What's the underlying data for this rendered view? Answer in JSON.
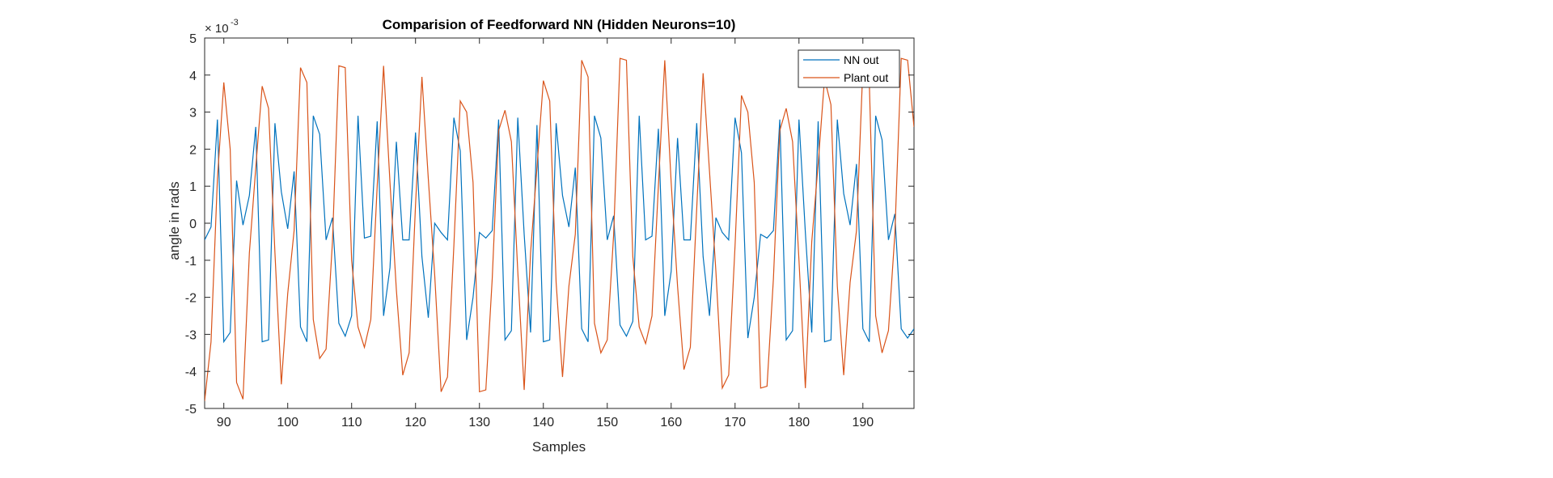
{
  "chart_data": {
    "type": "line",
    "title": "Comparision of Feedforward NN (Hidden Neurons=10)",
    "xlabel": "Samples",
    "ylabel": "angle in rads",
    "y_exponent_label": "× 10",
    "y_exponent_power": "-3",
    "xlim": [
      87,
      198
    ],
    "ylim": [
      -5,
      5
    ],
    "xticks": [
      90,
      100,
      110,
      120,
      130,
      140,
      150,
      160,
      170,
      180,
      190
    ],
    "yticks": [
      -5,
      -4,
      -3,
      -2,
      -1,
      0,
      1,
      2,
      3,
      4,
      5
    ],
    "grid": false,
    "legend_position": "top-right",
    "x": [
      87,
      88,
      89,
      90,
      91,
      92,
      93,
      94,
      95,
      96,
      97,
      98,
      99,
      100,
      101,
      102,
      103,
      104,
      105,
      106,
      107,
      108,
      109,
      110,
      111,
      112,
      113,
      114,
      115,
      116,
      117,
      118,
      119,
      120,
      121,
      122,
      123,
      124,
      125,
      126,
      127,
      128,
      129,
      130,
      131,
      132,
      133,
      134,
      135,
      136,
      137,
      138,
      139,
      140,
      141,
      142,
      143,
      144,
      145,
      146,
      147,
      148,
      149,
      150,
      151,
      152,
      153,
      154,
      155,
      156,
      157,
      158,
      159,
      160,
      161,
      162,
      163,
      164,
      165,
      166,
      167,
      168,
      169,
      170,
      171,
      172,
      173,
      174,
      175,
      176,
      177,
      178,
      179,
      180,
      181,
      182,
      183,
      184,
      185,
      186,
      187,
      188,
      189,
      190,
      191,
      192,
      193,
      194,
      195,
      196,
      197,
      198
    ],
    "series": [
      {
        "name": "NN out",
        "color": "#0072BD",
        "values": [
          -0.45,
          -0.1,
          2.8,
          -3.2,
          -2.95,
          1.15,
          -0.05,
          0.75,
          2.6,
          -3.2,
          -3.15,
          2.7,
          0.85,
          -0.15,
          1.4,
          -2.8,
          -3.2,
          2.9,
          2.4,
          -0.45,
          0.15,
          -2.7,
          -3.05,
          -2.5,
          2.9,
          -0.4,
          -0.35,
          2.75,
          -2.5,
          -1.2,
          2.2,
          -0.45,
          -0.45,
          2.45,
          -0.9,
          -2.55,
          0.0,
          -0.25,
          -0.45,
          2.85,
          1.95,
          -3.15,
          -2.0,
          -0.25,
          -0.4,
          -0.2,
          2.8,
          -3.15,
          -2.9,
          2.85,
          -0.3,
          -2.95,
          2.65,
          -3.2,
          -3.15,
          2.7,
          0.75,
          -0.1,
          1.5,
          -2.85,
          -3.2,
          2.9,
          2.3,
          -0.45,
          0.2,
          -2.75,
          -3.05,
          -2.65,
          2.9,
          -0.45,
          -0.35,
          2.55,
          -2.5,
          -1.3,
          2.3,
          -0.45,
          -0.45,
          2.7,
          -0.9,
          -2.5,
          0.15,
          -0.25,
          -0.45,
          2.85,
          1.9,
          -3.1,
          -2.0,
          -0.3,
          -0.4,
          -0.2,
          2.8,
          -3.15,
          -2.9,
          2.8,
          -0.25,
          -2.95,
          2.75,
          -3.2,
          -3.15,
          2.8,
          0.8,
          -0.05,
          1.6,
          -2.85,
          -3.2,
          2.9,
          2.25,
          -0.45,
          0.25,
          -2.85,
          -3.1,
          -2.85
        ]
      },
      {
        "name": "Plant out",
        "color": "#D95319",
        "values": [
          -4.8,
          -3.2,
          1.2,
          3.8,
          2.0,
          -4.3,
          -4.75,
          -0.8,
          1.5,
          3.7,
          3.1,
          -0.8,
          -4.35,
          -1.9,
          -0.2,
          4.2,
          3.8,
          -2.6,
          -3.65,
          -3.4,
          -0.5,
          4.25,
          4.2,
          -1.0,
          -2.8,
          -3.35,
          -2.6,
          1.0,
          4.25,
          1.1,
          -1.8,
          -4.1,
          -3.5,
          0.5,
          3.95,
          1.2,
          -1.4,
          -4.55,
          -4.15,
          -0.6,
          3.3,
          3.0,
          1.1,
          -4.55,
          -4.5,
          -1.5,
          2.5,
          3.05,
          2.2,
          -1.3,
          -4.5,
          -0.8,
          1.5,
          3.85,
          3.3,
          -1.6,
          -4.15,
          -1.7,
          -0.3,
          4.4,
          3.95,
          -2.7,
          -3.5,
          -3.15,
          -0.3,
          4.45,
          4.4,
          -0.9,
          -2.8,
          -3.25,
          -2.5,
          1.0,
          4.4,
          1.1,
          -1.7,
          -3.95,
          -3.35,
          0.4,
          4.05,
          1.4,
          -1.3,
          -4.45,
          -4.1,
          -0.6,
          3.45,
          3.0,
          1.1,
          -4.45,
          -4.4,
          -1.5,
          2.5,
          3.1,
          2.2,
          -1.0,
          -4.45,
          -0.5,
          1.6,
          3.9,
          3.2,
          -1.7,
          -4.1,
          -1.6,
          -0.2,
          4.2,
          3.85,
          -2.5,
          -3.5,
          -2.9,
          -0.3,
          4.45,
          4.4,
          2.6
        ]
      }
    ]
  }
}
